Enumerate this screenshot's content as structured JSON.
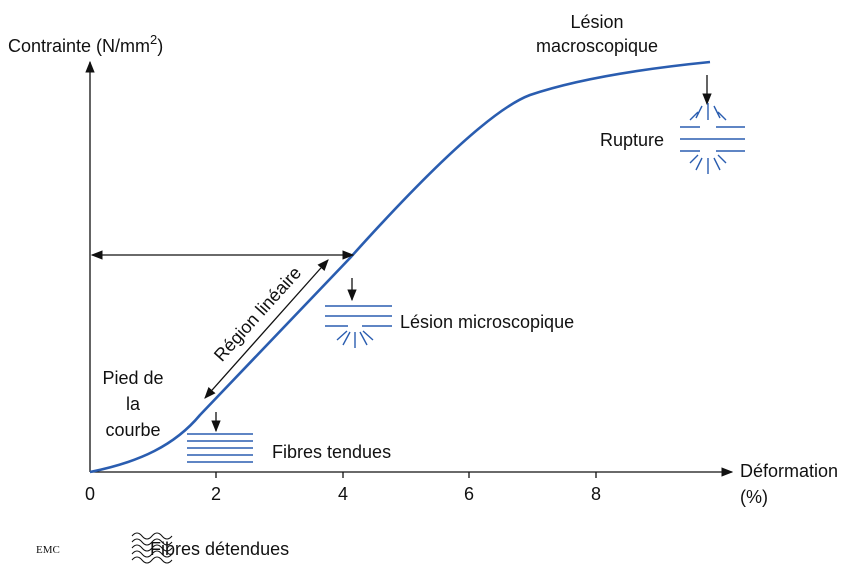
{
  "axes": {
    "y_label": {
      "text": "Contrainte (N/mm",
      "superscript": "2",
      "close": ")"
    },
    "x_label": [
      "Déformation",
      "(%)"
    ],
    "x_ticks": [
      "0",
      "2",
      "4",
      "6",
      "8"
    ]
  },
  "annotations": {
    "macro": [
      "Lésion",
      "macroscopique"
    ],
    "rupture": "Rupture",
    "micro": "Lésion microscopique",
    "linear": "Région linéaire",
    "toe": [
      "Pied de",
      "la",
      "courbe"
    ],
    "taut": "Fibres tendues"
  },
  "footer": {
    "logo": "EMC",
    "relaxed": "Fibres détendues"
  }
}
